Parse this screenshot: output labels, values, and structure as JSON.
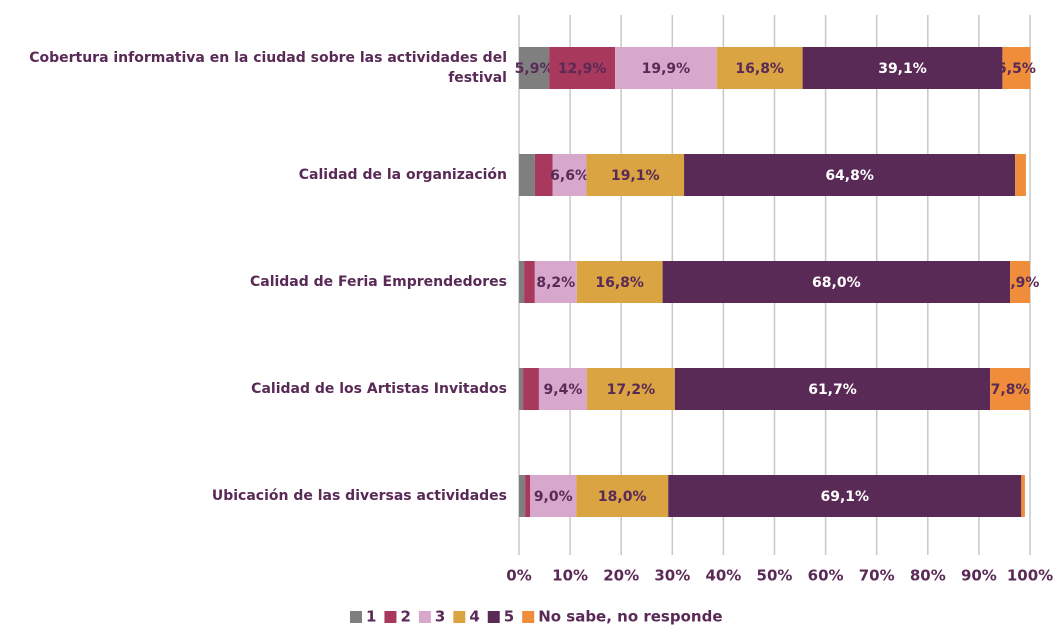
{
  "chart_data": {
    "type": "stacked_bar_horizontal",
    "categories": [
      "Cobertura informativa en la ciudad sobre las actividades del festival",
      "Calidad de la organización",
      "Calidad de Feria Emprendedores",
      "Calidad de los Artistas Invitados",
      "Ubicación de las diversas actividades"
    ],
    "series": [
      {
        "name": "1",
        "color": "#7f7f7f",
        "values": [
          5.9,
          3.1,
          1.0,
          0.8,
          1.2
        ],
        "value_labels": [
          "5,9%",
          null,
          null,
          null,
          null
        ]
      },
      {
        "name": "2",
        "color": "#a8385c",
        "values": [
          12.9,
          3.5,
          2.1,
          3.1,
          1.0
        ],
        "value_labels": [
          "12,9%",
          null,
          null,
          null,
          null
        ]
      },
      {
        "name": "3",
        "color": "#d8a8cc",
        "values": [
          19.9,
          6.6,
          8.2,
          9.4,
          9.0
        ],
        "value_labels": [
          "19,9%",
          "6,6%",
          "8,2%",
          "9,4%",
          "9,0%"
        ]
      },
      {
        "name": "4",
        "color": "#d9a441",
        "values": [
          16.8,
          19.1,
          16.8,
          17.2,
          18.0
        ],
        "value_labels": [
          "16,8%",
          "19,1%",
          "16,8%",
          "17,2%",
          "18,0%"
        ]
      },
      {
        "name": "5",
        "color": "#5a2a57",
        "values": [
          39.1,
          64.8,
          68.0,
          61.7,
          69.1
        ],
        "value_labels": [
          "39,1%",
          "64,8%",
          "68,0%",
          "61,7%",
          "69,1%"
        ]
      },
      {
        "name": "No sabe, no responde",
        "color": "#ef8d3b",
        "values": [
          5.5,
          2.1,
          3.9,
          7.8,
          0.7
        ],
        "value_labels": [
          "5,5%",
          null,
          "3,9%",
          "7,8%",
          null
        ]
      }
    ],
    "xlim": [
      0,
      100
    ],
    "xticks": [
      {
        "value": 0,
        "label": "0%"
      },
      {
        "value": 10,
        "label": "10%"
      },
      {
        "value": 20,
        "label": "20%"
      },
      {
        "value": 30,
        "label": "30%"
      },
      {
        "value": 40,
        "label": "40%"
      },
      {
        "value": 50,
        "label": "50%"
      },
      {
        "value": 60,
        "label": "60%"
      },
      {
        "value": 70,
        "label": "70%"
      },
      {
        "value": 80,
        "label": "80%"
      },
      {
        "value": 90,
        "label": "90%"
      },
      {
        "value": 100,
        "label": "100%"
      }
    ],
    "grid": true,
    "legend": "bottom"
  }
}
